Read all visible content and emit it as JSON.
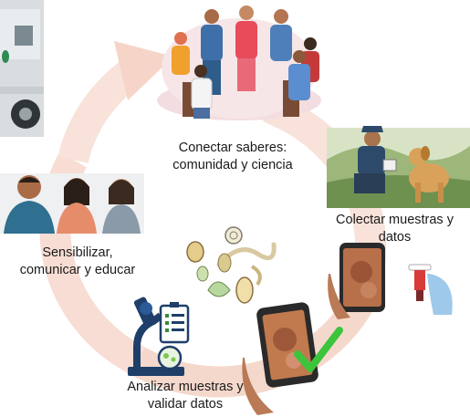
{
  "diagram": {
    "steps": [
      {
        "id": "connect",
        "label": "Conectar saberes:\ncomunidad y ciencia",
        "icon": "community-circle-illustration"
      },
      {
        "id": "collect",
        "label": "Colectar  muestras y\ndatos",
        "icon": "field-worker-with-dog-illustration"
      },
      {
        "id": "analyze",
        "label": "Analizar muestras y\nvalidar datos",
        "icon": "microscope-icon"
      },
      {
        "id": "educate",
        "label": "Sensibilizar,\ncomunicar y educar",
        "icon": "people-illustration"
      }
    ],
    "center_icon": "parasites-illustration",
    "cycle_arrow_color": "#f6dcd2",
    "accent_green": "#3cc43c"
  }
}
